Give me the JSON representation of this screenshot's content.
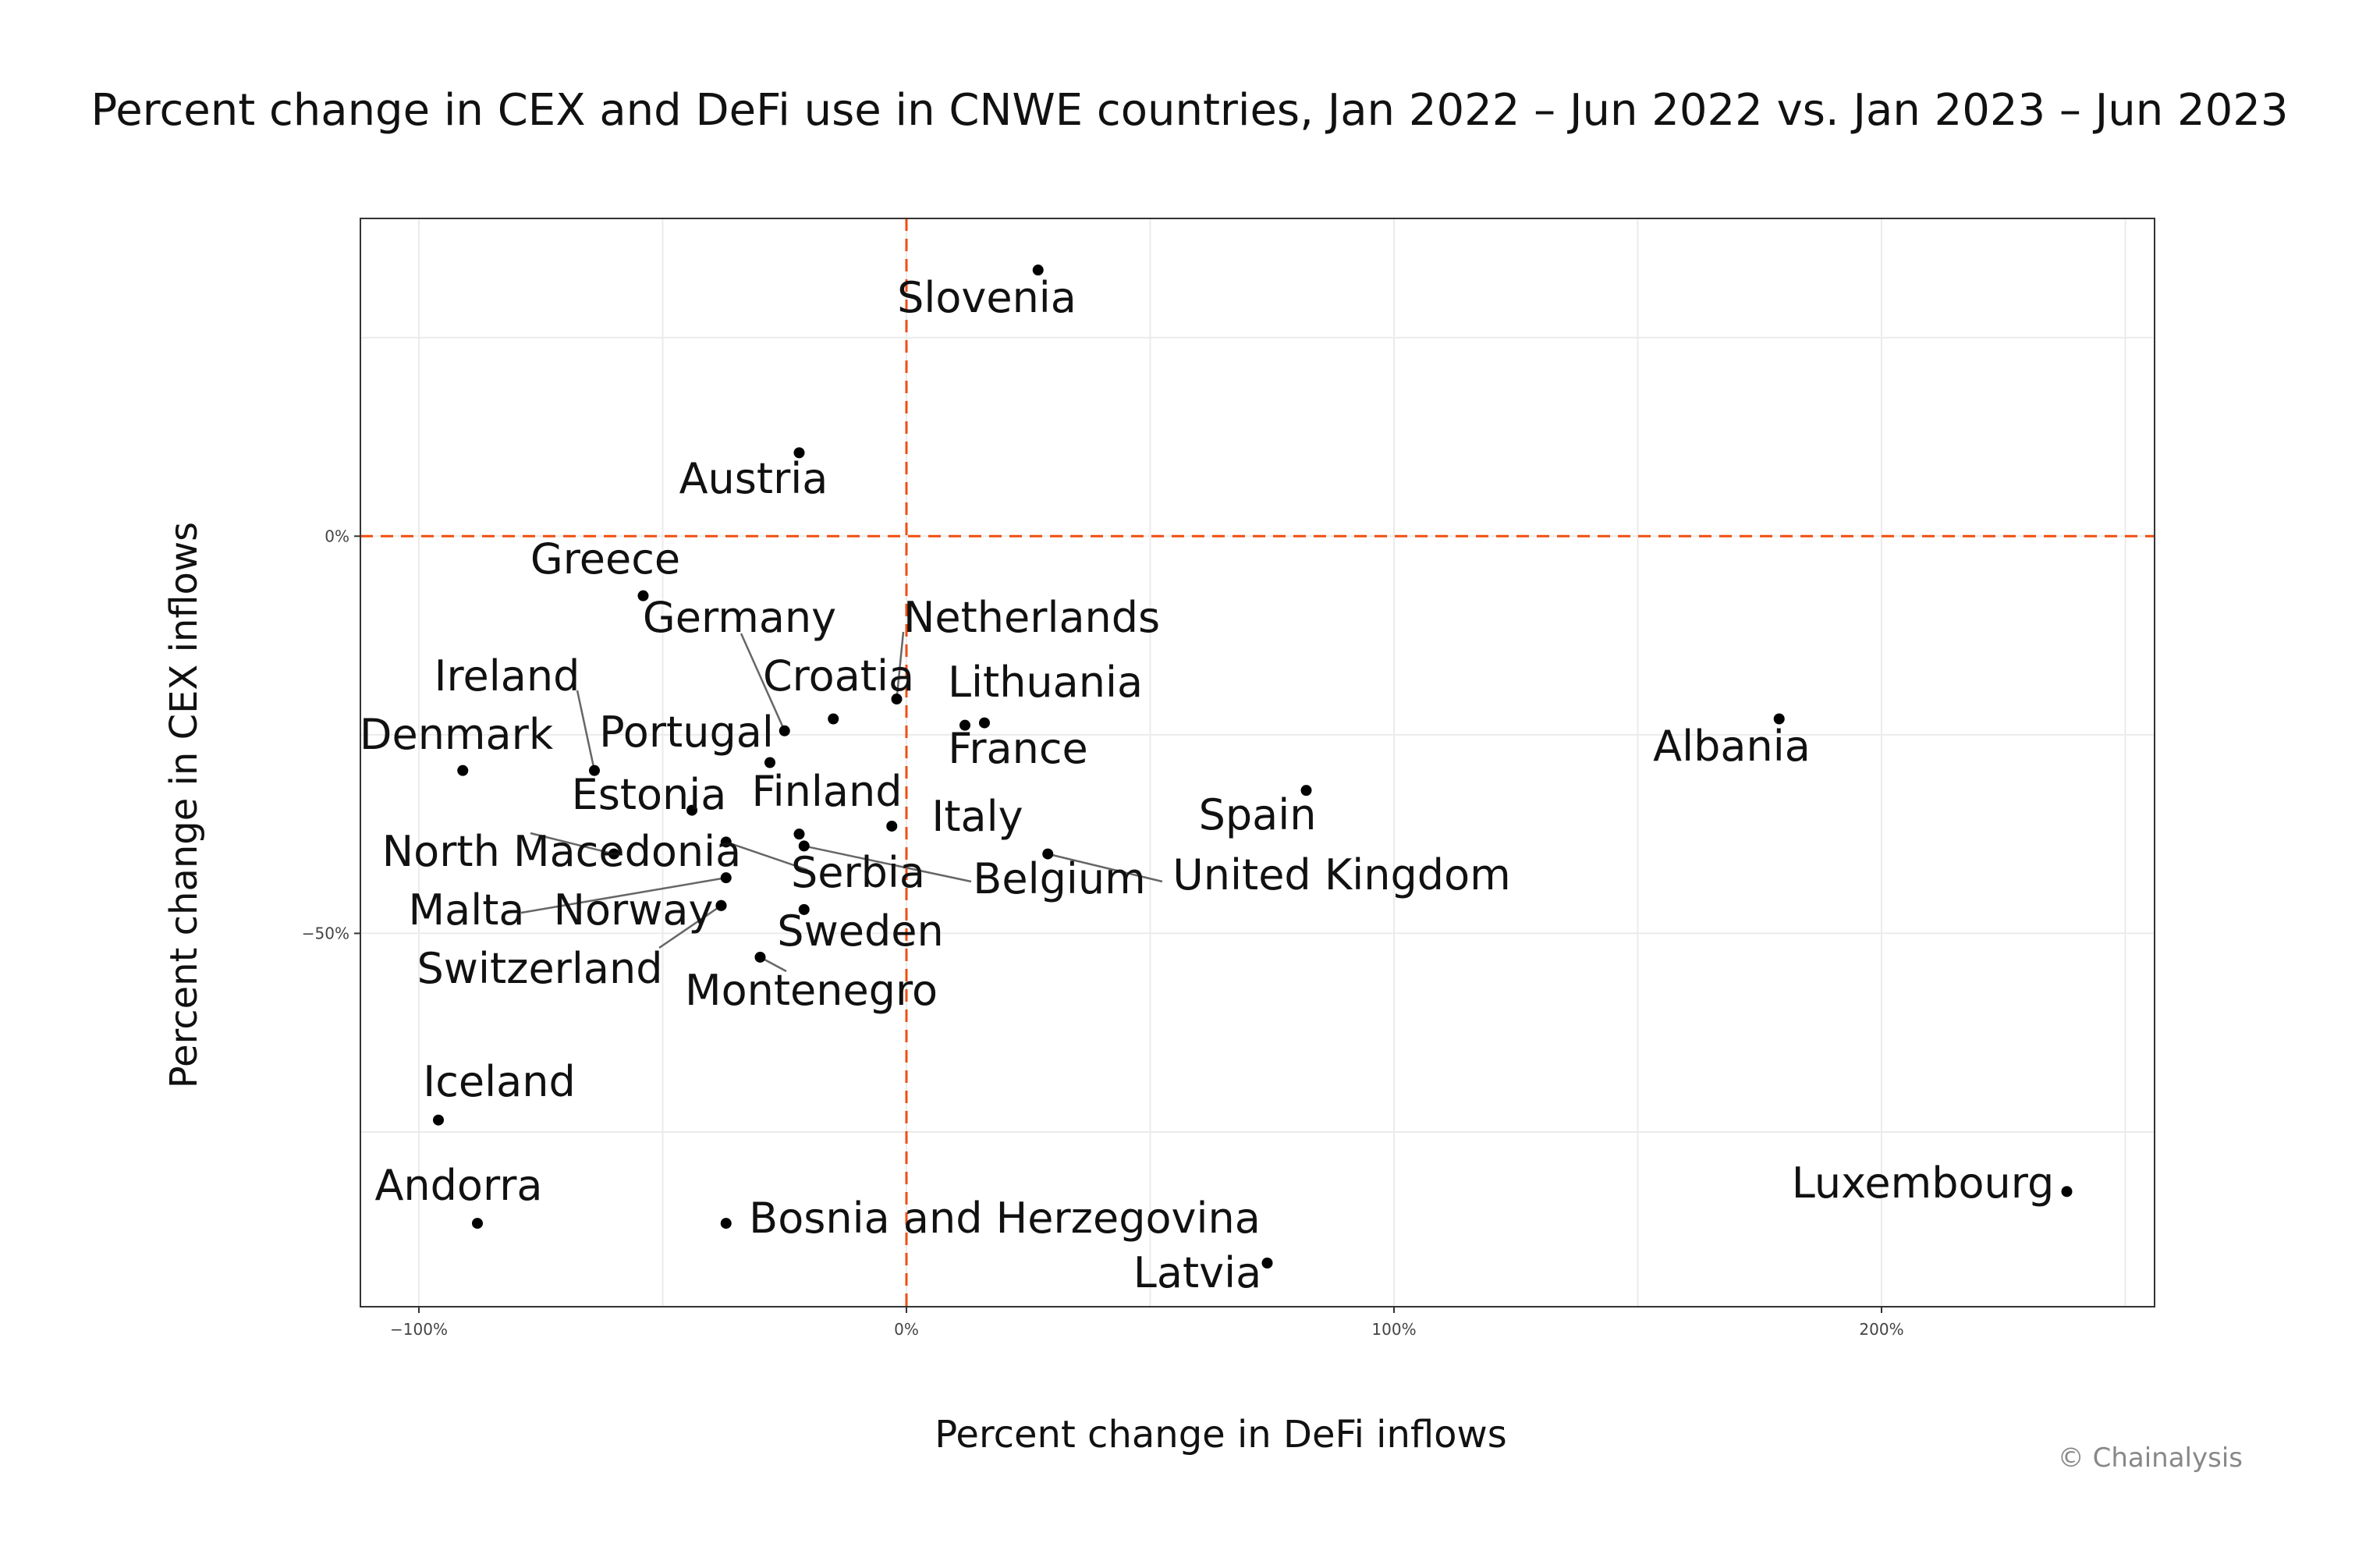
{
  "chart_data": {
    "type": "scatter",
    "title": "Percent change in CEX and DeFi use in CNWE countries, Jan 2022 – Jun 2022 vs. Jan 2023 – Jun 2023",
    "xlabel": "Percent change in DeFi inflows",
    "ylabel": "Percent change in CEX inflows",
    "xlim": [
      -112,
      256
    ],
    "ylim": [
      -97,
      40
    ],
    "x_ticks": [
      {
        "value": -100,
        "label": "−100%"
      },
      {
        "value": 0,
        "label": "0%"
      },
      {
        "value": 100,
        "label": "100%"
      },
      {
        "value": 200,
        "label": "200%"
      }
    ],
    "y_ticks": [
      {
        "value": 0,
        "label": "0%"
      },
      {
        "value": -50,
        "label": "−50%"
      }
    ],
    "reference_lines": {
      "x": 0,
      "y": 0,
      "color": "#f04e10"
    },
    "points": [
      {
        "name": "Slovenia",
        "x": 27,
        "y": 33.5
      },
      {
        "name": "Austria",
        "x": -22,
        "y": 10.5
      },
      {
        "name": "Greece",
        "x": -54,
        "y": -7.5
      },
      {
        "name": "Germany",
        "x": -25,
        "y": -24.5
      },
      {
        "name": "Netherlands",
        "x": -2,
        "y": -20.5
      },
      {
        "name": "Croatia",
        "x": -15,
        "y": -23
      },
      {
        "name": "Lithuania",
        "x": 16,
        "y": -23.5
      },
      {
        "name": "France",
        "x": 12,
        "y": -23.8
      },
      {
        "name": "Ireland",
        "x": -64,
        "y": -29.5
      },
      {
        "name": "Portugal",
        "x": -28,
        "y": -28.5
      },
      {
        "name": "Denmark",
        "x": -91,
        "y": -29.5
      },
      {
        "name": "Albania",
        "x": 179,
        "y": -23
      },
      {
        "name": "Spain",
        "x": 82,
        "y": -32
      },
      {
        "name": "Estonia",
        "x": -44,
        "y": -34.5
      },
      {
        "name": "Finland",
        "x": -22,
        "y": -37.5
      },
      {
        "name": "Italy",
        "x": -3,
        "y": -36.5
      },
      {
        "name": "North Macedonia",
        "x": -60,
        "y": -40
      },
      {
        "name": "Serbia",
        "x": -37,
        "y": -38.5
      },
      {
        "name": "Belgium",
        "x": -21,
        "y": -39
      },
      {
        "name": "United Kingdom",
        "x": 29,
        "y": -40
      },
      {
        "name": "Malta",
        "x": -37,
        "y": -43
      },
      {
        "name": "Norway",
        "x": -38,
        "y": -46.5
      },
      {
        "name": "Sweden",
        "x": -21,
        "y": -47
      },
      {
        "name": "Switzerland",
        "x": -38,
        "y": -46.5
      },
      {
        "name": "Montenegro",
        "x": -30,
        "y": -53
      },
      {
        "name": "Iceland",
        "x": -96,
        "y": -73.5
      },
      {
        "name": "Andorra",
        "x": -88,
        "y": -86.5
      },
      {
        "name": "Bosnia and Herzegovina",
        "x": -37,
        "y": -86.5
      },
      {
        "name": "Latvia",
        "x": 74,
        "y": -91.5
      },
      {
        "name": "Luxembourg",
        "x": 238,
        "y": -82.5
      }
    ]
  },
  "credit": "© Chainalysis"
}
